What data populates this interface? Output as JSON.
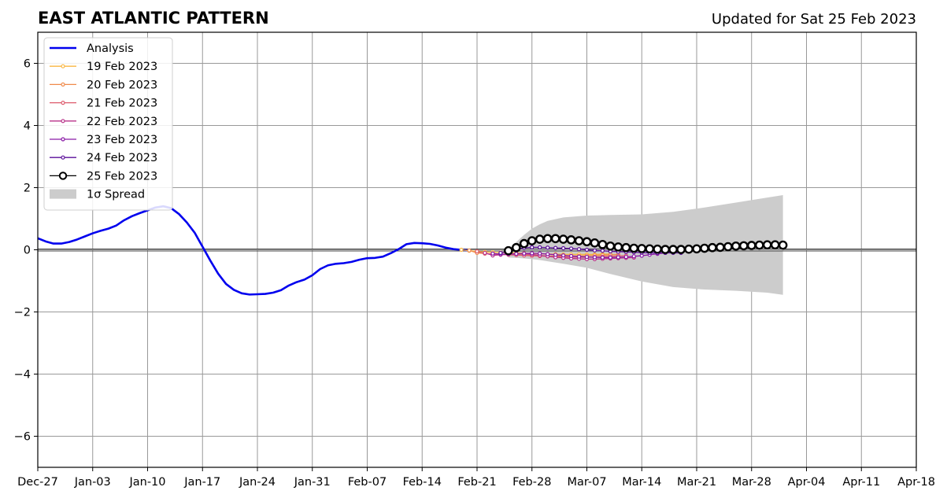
{
  "chart_data": {
    "type": "line",
    "title": "EAST ATLANTIC PATTERN",
    "subtitle": "Updated for Sat 25 Feb 2023",
    "xlabel": "",
    "ylabel": "",
    "x_axis": {
      "type": "date",
      "range": [
        "2022-12-27",
        "2023-04-18"
      ],
      "ticks": [
        "2022-12-27",
        "2023-01-03",
        "2023-01-10",
        "2023-01-17",
        "2023-01-24",
        "2023-01-31",
        "2023-02-07",
        "2023-02-14",
        "2023-02-21",
        "2023-02-28",
        "2023-03-07",
        "2023-03-14",
        "2023-03-21",
        "2023-03-28",
        "2023-04-04",
        "2023-04-11",
        "2023-04-18"
      ],
      "tick_labels": [
        "Dec-27",
        "Jan-03",
        "Jan-10",
        "Jan-17",
        "Jan-24",
        "Jan-31",
        "Feb-07",
        "Feb-14",
        "Feb-21",
        "Feb-28",
        "Mar-07",
        "Mar-14",
        "Mar-21",
        "Mar-28",
        "Apr-04",
        "Apr-11",
        "Apr-18"
      ]
    },
    "y_axis": {
      "range": [
        -7,
        7
      ],
      "ticks": [
        -6,
        -4,
        -2,
        0,
        2,
        4,
        6
      ],
      "tick_labels": [
        "−6",
        "−4",
        "−2",
        "0",
        "2",
        "4",
        "6"
      ]
    },
    "grid": true,
    "legend_position": "top-left",
    "legend": [
      "Analysis",
      "19 Feb 2023",
      "20 Feb 2023",
      "21 Feb 2023",
      "22 Feb 2023",
      "23 Feb 2023",
      "24 Feb 2023",
      "25 Feb 2023",
      "1σ Spread"
    ],
    "colors": {
      "analysis": "#0000ee",
      "19 Feb 2023": "#f9b640",
      "20 Feb 2023": "#f08a4a",
      "21 Feb 2023": "#dd5a6c",
      "22 Feb 2023": "#b83289",
      "23 Feb 2023": "#8a1aa6",
      "24 Feb 2023": "#5a0d9a",
      "25 Feb 2023": "#000000",
      "spread": "#cccccc"
    },
    "analysis": {
      "name": "Analysis",
      "x": [
        "2022-12-27",
        "2022-12-28",
        "2022-12-29",
        "2022-12-30",
        "2022-12-31",
        "2023-01-01",
        "2023-01-02",
        "2023-01-03",
        "2023-01-04",
        "2023-01-05",
        "2023-01-06",
        "2023-01-07",
        "2023-01-08",
        "2023-01-09",
        "2023-01-10",
        "2023-01-11",
        "2023-01-12",
        "2023-01-13",
        "2023-01-14",
        "2023-01-15",
        "2023-01-16",
        "2023-01-17",
        "2023-01-18",
        "2023-01-19",
        "2023-01-20",
        "2023-01-21",
        "2023-01-22",
        "2023-01-23",
        "2023-01-24",
        "2023-01-25",
        "2023-01-26",
        "2023-01-27",
        "2023-01-28",
        "2023-01-29",
        "2023-01-30",
        "2023-01-31",
        "2023-02-01",
        "2023-02-02",
        "2023-02-03",
        "2023-02-04",
        "2023-02-05",
        "2023-02-06",
        "2023-02-07",
        "2023-02-08",
        "2023-02-09",
        "2023-02-10",
        "2023-02-11",
        "2023-02-12",
        "2023-02-13",
        "2023-02-14",
        "2023-02-15",
        "2023-02-16",
        "2023-02-17",
        "2023-02-18",
        "2023-02-19",
        "2023-02-20"
      ],
      "y": [
        0.37,
        0.27,
        0.2,
        0.2,
        0.25,
        0.33,
        0.43,
        0.53,
        0.61,
        0.68,
        0.78,
        0.95,
        1.08,
        1.18,
        1.27,
        1.36,
        1.4,
        1.34,
        1.15,
        0.88,
        0.55,
        0.1,
        -0.35,
        -0.77,
        -1.1,
        -1.29,
        -1.4,
        -1.44,
        -1.43,
        -1.42,
        -1.38,
        -1.3,
        -1.15,
        -1.04,
        -0.96,
        -0.82,
        -0.62,
        -0.5,
        -0.45,
        -0.43,
        -0.39,
        -0.32,
        -0.27,
        -0.26,
        -0.22,
        -0.11,
        0.02,
        0.18,
        0.22,
        0.21,
        0.19,
        0.14,
        0.07,
        0.02,
        0.0,
        -0.02
      ]
    },
    "forecasts": [
      {
        "name": "19 Feb 2023",
        "x": [
          "2023-02-19",
          "2023-02-20",
          "2023-02-21",
          "2023-02-22",
          "2023-02-23",
          "2023-02-24",
          "2023-02-25",
          "2023-02-26",
          "2023-02-27",
          "2023-02-28",
          "2023-03-01",
          "2023-03-02",
          "2023-03-03",
          "2023-03-04",
          "2023-03-05",
          "2023-03-06",
          "2023-03-07",
          "2023-03-08",
          "2023-03-09",
          "2023-03-10"
        ],
        "y": [
          0.0,
          -0.03,
          -0.05,
          -0.07,
          -0.08,
          -0.09,
          -0.1,
          -0.1,
          -0.11,
          -0.12,
          -0.13,
          -0.14,
          -0.14,
          -0.15,
          -0.15,
          -0.15,
          -0.15,
          -0.15,
          -0.14,
          -0.14
        ]
      },
      {
        "name": "20 Feb 2023",
        "x": [
          "2023-02-20",
          "2023-02-21",
          "2023-02-22",
          "2023-02-23",
          "2023-02-24",
          "2023-02-25",
          "2023-02-26",
          "2023-02-27",
          "2023-02-28",
          "2023-03-01",
          "2023-03-02",
          "2023-03-03",
          "2023-03-04",
          "2023-03-05",
          "2023-03-06",
          "2023-03-07",
          "2023-03-08",
          "2023-03-09",
          "2023-03-10",
          "2023-03-11"
        ],
        "y": [
          -0.02,
          -0.1,
          -0.12,
          -0.13,
          -0.14,
          -0.15,
          -0.16,
          -0.17,
          -0.18,
          -0.19,
          -0.2,
          -0.2,
          -0.2,
          -0.2,
          -0.2,
          -0.19,
          -0.18,
          -0.17,
          -0.16,
          -0.15
        ]
      },
      {
        "name": "21 Feb 2023",
        "x": [
          "2023-02-21",
          "2023-02-22",
          "2023-02-23",
          "2023-02-24",
          "2023-02-25",
          "2023-02-26",
          "2023-02-27",
          "2023-02-28",
          "2023-03-01",
          "2023-03-02",
          "2023-03-03",
          "2023-03-04",
          "2023-03-05",
          "2023-03-06",
          "2023-03-07",
          "2023-03-08",
          "2023-03-09",
          "2023-03-10",
          "2023-03-11",
          "2023-03-12"
        ],
        "y": [
          -0.05,
          -0.12,
          -0.14,
          -0.15,
          -0.16,
          -0.17,
          -0.18,
          -0.19,
          -0.2,
          -0.21,
          -0.22,
          -0.23,
          -0.24,
          -0.24,
          -0.24,
          -0.23,
          -0.22,
          -0.21,
          -0.2,
          -0.19
        ]
      },
      {
        "name": "22 Feb 2023",
        "x": [
          "2023-02-22",
          "2023-02-23",
          "2023-02-24",
          "2023-02-25",
          "2023-02-26",
          "2023-02-27",
          "2023-02-28",
          "2023-03-01",
          "2023-03-02",
          "2023-03-03",
          "2023-03-04",
          "2023-03-05",
          "2023-03-06",
          "2023-03-07",
          "2023-03-08",
          "2023-03-09",
          "2023-03-10",
          "2023-03-11",
          "2023-03-12",
          "2023-03-13"
        ],
        "y": [
          -0.1,
          -0.18,
          -0.16,
          -0.14,
          -0.13,
          -0.13,
          -0.15,
          -0.18,
          -0.21,
          -0.24,
          -0.26,
          -0.28,
          -0.29,
          -0.3,
          -0.3,
          -0.29,
          -0.28,
          -0.27,
          -0.26,
          -0.25
        ]
      },
      {
        "name": "23 Feb 2023",
        "x": [
          "2023-02-23",
          "2023-02-24",
          "2023-02-25",
          "2023-02-26",
          "2023-02-27",
          "2023-02-28",
          "2023-03-01",
          "2023-03-02",
          "2023-03-03",
          "2023-03-04",
          "2023-03-05",
          "2023-03-06",
          "2023-03-07",
          "2023-03-08",
          "2023-03-09",
          "2023-03-10",
          "2023-03-11",
          "2023-03-12",
          "2023-03-13",
          "2023-03-14",
          "2023-03-15",
          "2023-03-16",
          "2023-03-17",
          "2023-03-18"
        ],
        "y": [
          -0.12,
          -0.14,
          -0.14,
          -0.13,
          -0.12,
          -0.11,
          -0.12,
          -0.14,
          -0.16,
          -0.18,
          -0.2,
          -0.22,
          -0.23,
          -0.24,
          -0.25,
          -0.25,
          -0.24,
          -0.23,
          -0.21,
          -0.19,
          -0.16,
          -0.13,
          -0.1,
          -0.07
        ]
      },
      {
        "name": "24 Feb 2023",
        "x": [
          "2023-02-24",
          "2023-02-25",
          "2023-02-26",
          "2023-02-27",
          "2023-02-28",
          "2023-03-01",
          "2023-03-02",
          "2023-03-03",
          "2023-03-04",
          "2023-03-05",
          "2023-03-06",
          "2023-03-07",
          "2023-03-08",
          "2023-03-09",
          "2023-03-10",
          "2023-03-11",
          "2023-03-12",
          "2023-03-13",
          "2023-03-14",
          "2023-03-15",
          "2023-03-16",
          "2023-03-17",
          "2023-03-18",
          "2023-03-19"
        ],
        "y": [
          -0.1,
          -0.05,
          0.02,
          0.06,
          0.08,
          0.08,
          0.07,
          0.06,
          0.05,
          0.04,
          0.02,
          0.0,
          -0.02,
          -0.03,
          -0.05,
          -0.06,
          -0.07,
          -0.08,
          -0.09,
          -0.1,
          -0.1,
          -0.1,
          -0.1,
          -0.1
        ]
      },
      {
        "name": "25 Feb 2023",
        "x": [
          "2023-02-25",
          "2023-02-26",
          "2023-02-27",
          "2023-02-28",
          "2023-03-01",
          "2023-03-02",
          "2023-03-03",
          "2023-03-04",
          "2023-03-05",
          "2023-03-06",
          "2023-03-07",
          "2023-03-08",
          "2023-03-09",
          "2023-03-10",
          "2023-03-11",
          "2023-03-12",
          "2023-03-13",
          "2023-03-14",
          "2023-03-15",
          "2023-03-16",
          "2023-03-17",
          "2023-03-18",
          "2023-03-19",
          "2023-03-20",
          "2023-03-21",
          "2023-03-22",
          "2023-03-23",
          "2023-03-24",
          "2023-03-25",
          "2023-03-26",
          "2023-03-27",
          "2023-03-28",
          "2023-03-29",
          "2023-03-30",
          "2023-03-31",
          "2023-04-01"
        ],
        "y": [
          -0.03,
          0.07,
          0.2,
          0.29,
          0.34,
          0.36,
          0.36,
          0.34,
          0.32,
          0.29,
          0.26,
          0.22,
          0.17,
          0.12,
          0.09,
          0.07,
          0.05,
          0.04,
          0.03,
          0.02,
          0.01,
          0.01,
          0.01,
          0.02,
          0.03,
          0.05,
          0.07,
          0.08,
          0.1,
          0.12,
          0.13,
          0.14,
          0.15,
          0.16,
          0.16,
          0.15
        ]
      }
    ],
    "spread": {
      "name": "1σ Spread",
      "x": [
        "2023-02-25",
        "2023-02-26",
        "2023-02-27",
        "2023-02-28",
        "2023-03-01",
        "2023-03-02",
        "2023-03-04",
        "2023-03-07",
        "2023-03-10",
        "2023-03-14",
        "2023-03-18",
        "2023-03-22",
        "2023-03-26",
        "2023-03-30",
        "2023-04-01"
      ],
      "upper": [
        0.0,
        0.25,
        0.48,
        0.68,
        0.82,
        0.93,
        1.04,
        1.1,
        1.12,
        1.14,
        1.22,
        1.36,
        1.52,
        1.68,
        1.76
      ],
      "lower": [
        -0.25,
        -0.26,
        -0.28,
        -0.3,
        -0.33,
        -0.37,
        -0.45,
        -0.58,
        -0.78,
        -1.02,
        -1.2,
        -1.28,
        -1.32,
        -1.38,
        -1.45
      ]
    }
  }
}
